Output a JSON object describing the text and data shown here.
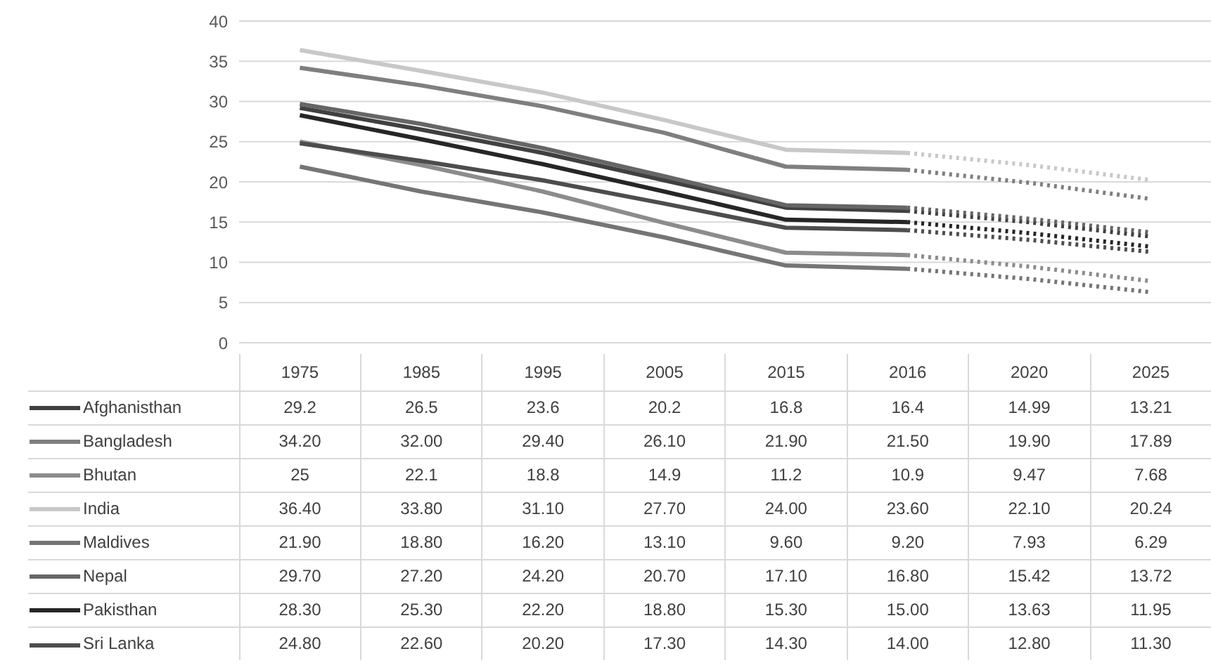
{
  "chart_data": {
    "type": "line",
    "categories": [
      "1975",
      "1985",
      "1995",
      "2005",
      "2015",
      "2016",
      "2020",
      "2025"
    ],
    "ylim": [
      0,
      40
    ],
    "yticks": [
      0,
      5,
      10,
      15,
      20,
      25,
      30,
      35,
      40
    ],
    "grid": "y",
    "legend": "bottom",
    "marker": "none",
    "series": [
      {
        "name": "Afghanisthan",
        "color": "#404040",
        "line_style": "solid",
        "values": [
          29.2,
          26.5,
          23.6,
          20.2,
          16.8,
          16.4,
          14.99,
          13.21
        ],
        "value_labels": [
          "29.2",
          "26.5",
          "23.6",
          "20.2",
          "16.8",
          "16.4",
          "14.99",
          "13.21"
        ]
      },
      {
        "color": "#404040",
        "line_style": "dotted",
        "values": [
          null,
          null,
          null,
          null,
          null,
          16.4,
          14.99,
          13.21
        ]
      },
      {
        "name": "Bangladesh",
        "color": "#7f7f7f",
        "line_style": "solid",
        "values": [
          34.2,
          32.0,
          29.4,
          26.1,
          21.9,
          21.5,
          19.9,
          17.89
        ],
        "value_labels": [
          "34.20",
          "32.00",
          "29.40",
          "26.10",
          "21.90",
          "21.50",
          "19.90",
          "17.89"
        ]
      },
      {
        "color": "#7f7f7f",
        "line_style": "dotted",
        "values": [
          null,
          null,
          null,
          null,
          null,
          21.5,
          19.9,
          17.89
        ]
      },
      {
        "name": "Bhutan",
        "color": "#8c8c8c",
        "line_style": "solid",
        "values": [
          25,
          22.1,
          18.8,
          14.9,
          11.2,
          10.9,
          9.47,
          7.68
        ],
        "value_labels": [
          "25",
          "22.1",
          "18.8",
          "14.9",
          "11.2",
          "10.9",
          "9.47",
          "7.68"
        ]
      },
      {
        "color": "#8c8c8c",
        "line_style": "dotted",
        "values": [
          null,
          null,
          null,
          null,
          null,
          10.9,
          9.47,
          7.68
        ]
      },
      {
        "name": "India",
        "color": "#c8c8c8",
        "line_style": "solid",
        "values": [
          36.4,
          33.8,
          31.1,
          27.7,
          24.0,
          23.6,
          22.1,
          20.24
        ],
        "value_labels": [
          "36.40",
          "33.80",
          "31.10",
          "27.70",
          "24.00",
          "23.60",
          "22.10",
          "20.24"
        ]
      },
      {
        "color": "#c8c8c8",
        "line_style": "dotted",
        "values": [
          null,
          null,
          null,
          null,
          null,
          23.6,
          22.1,
          20.24
        ]
      },
      {
        "name": "Maldives",
        "color": "#757575",
        "line_style": "solid",
        "values": [
          21.9,
          18.8,
          16.2,
          13.1,
          9.6,
          9.2,
          7.93,
          6.29
        ],
        "value_labels": [
          "21.90",
          "18.80",
          "16.20",
          "13.10",
          "9.60",
          "9.20",
          "7.93",
          "6.29"
        ]
      },
      {
        "color": "#757575",
        "line_style": "dotted",
        "values": [
          null,
          null,
          null,
          null,
          null,
          9.2,
          7.93,
          6.29
        ]
      },
      {
        "name": "Nepal",
        "color": "#666666",
        "line_style": "solid",
        "values": [
          29.7,
          27.2,
          24.2,
          20.7,
          17.1,
          16.8,
          15.42,
          13.72
        ],
        "value_labels": [
          "29.70",
          "27.20",
          "24.20",
          "20.70",
          "17.10",
          "16.80",
          "15.42",
          "13.72"
        ]
      },
      {
        "color": "#666666",
        "line_style": "dotted",
        "values": [
          null,
          null,
          null,
          null,
          null,
          16.8,
          15.42,
          13.72
        ]
      },
      {
        "name": "Pakisthan",
        "color": "#262626",
        "line_style": "solid",
        "values": [
          28.3,
          25.3,
          22.2,
          18.8,
          15.3,
          15.0,
          13.63,
          11.95
        ],
        "value_labels": [
          "28.30",
          "25.30",
          "22.20",
          "18.80",
          "15.30",
          "15.00",
          "13.63",
          "11.95"
        ]
      },
      {
        "color": "#262626",
        "line_style": "dotted",
        "values": [
          null,
          null,
          null,
          null,
          null,
          15.0,
          13.63,
          11.95
        ]
      },
      {
        "name": "Sri Lanka",
        "color": "#4d4d4d",
        "line_style": "solid",
        "values": [
          24.8,
          22.6,
          20.2,
          17.3,
          14.3,
          14.0,
          12.8,
          11.3
        ],
        "value_labels": [
          "24.80",
          "22.60",
          "20.20",
          "17.30",
          "14.30",
          "14.00",
          "12.80",
          "11.30"
        ]
      },
      {
        "color": "#4d4d4d",
        "line_style": "dotted",
        "values": [
          null,
          null,
          null,
          null,
          null,
          14.0,
          12.8,
          11.3
        ]
      }
    ]
  }
}
